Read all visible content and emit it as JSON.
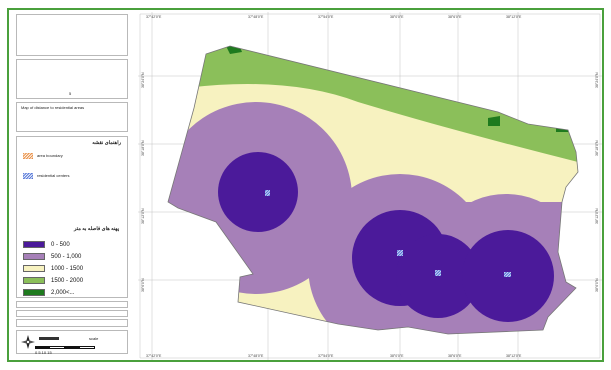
{
  "legend": {
    "number_5": "5",
    "title_en": "Map of distance to residential areas",
    "title_fa": "راهنمای نقشه",
    "hatch_items": [
      {
        "label": "area boundary",
        "color": "#e8893a",
        "pattern": "diagonal-orange"
      },
      {
        "label": "residential centers",
        "color": "#4a6fd6",
        "pattern": "diagonal-blue"
      }
    ],
    "class_title": "پهنه های فاصله به متر",
    "classes": [
      {
        "label": "0 - 500",
        "color": "#4b1a9a"
      },
      {
        "label": "500 - 1,000",
        "color": "#a680b8"
      },
      {
        "label": "1000 - 1500",
        "color": "#f7f2c0"
      },
      {
        "label": "1500 - 2000",
        "color": "#8bbf5a"
      },
      {
        "label": "2,000<...",
        "color": "#1e7a1e"
      }
    ],
    "footer_small": "scale",
    "scale_text": "0  5  10  15",
    "north_icon": "north-arrow-icon"
  },
  "map": {
    "top_ticks": [
      "37°42'0\"E",
      "37°48'0\"E",
      "37°54'0\"E",
      "38°0'0\"E",
      "38°6'0\"E",
      "38°12'0\"E"
    ],
    "left_ticks": [
      "38°24'0\"N",
      "38°18'0\"N",
      "38°12'0\"N",
      "38°6'0\"N"
    ],
    "colors": {
      "zone_0_500": "#4b1a9a",
      "zone_500_1000": "#a680b8",
      "zone_1000_1500": "#f7f2c0",
      "zone_1500_2000": "#8bbf5a",
      "zone_2000_plus": "#1e7a1e",
      "frame": "#4aa03c"
    }
  }
}
